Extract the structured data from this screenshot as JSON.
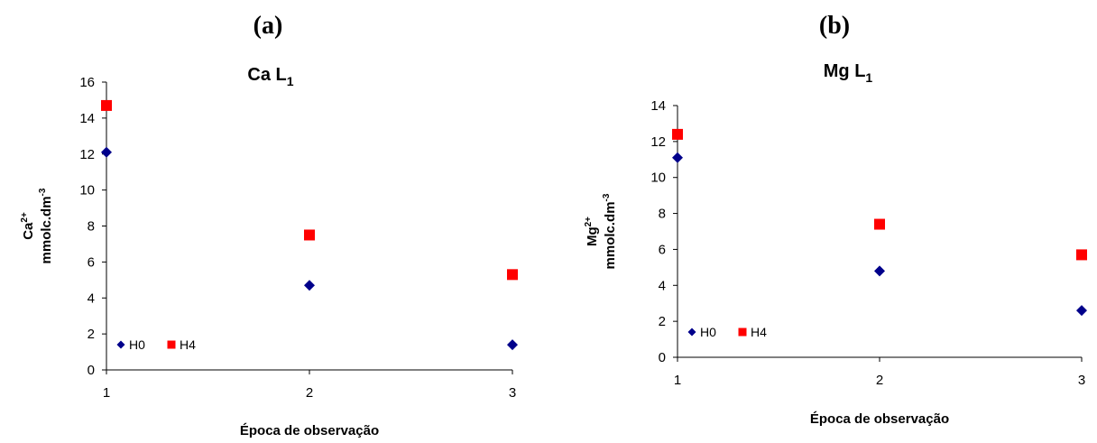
{
  "chart_data": [
    {
      "type": "scatter",
      "panel_label": "(a)",
      "title": "Ca L",
      "title_subscript": "1",
      "xlabel": "Época de observação",
      "ylabel_line1": "Ca",
      "ylabel_line1_sup": "2+",
      "ylabel_line2": "mmolc.dm",
      "ylabel_line2_sup": "-3",
      "xlim": [
        1,
        3
      ],
      "ylim": [
        0,
        16
      ],
      "xticks": [
        1,
        2,
        3
      ],
      "yticks": [
        0,
        2,
        4,
        6,
        8,
        10,
        12,
        14,
        16
      ],
      "grid": false,
      "legend_position": "bottom-left",
      "series": [
        {
          "name": "H0",
          "marker": "diamond",
          "color": "#00008B",
          "x": [
            1,
            2,
            3
          ],
          "y": [
            12.1,
            4.7,
            1.4
          ]
        },
        {
          "name": "H4",
          "marker": "square",
          "color": "#FF0000",
          "x": [
            1,
            2,
            3
          ],
          "y": [
            14.7,
            7.5,
            5.3
          ]
        }
      ]
    },
    {
      "type": "scatter",
      "panel_label": "(b)",
      "title": "Mg L",
      "title_subscript": "1",
      "xlabel": "Época de observação",
      "ylabel_line1": "Mg",
      "ylabel_line1_sup": "2+",
      "ylabel_line2": "mmolc.dm",
      "ylabel_line2_sup": "-3",
      "xlim": [
        1,
        3
      ],
      "ylim": [
        0,
        14
      ],
      "xticks": [
        1,
        2,
        3
      ],
      "yticks": [
        0,
        2,
        4,
        6,
        8,
        10,
        12,
        14
      ],
      "grid": false,
      "legend_position": "bottom-left",
      "series": [
        {
          "name": "H0",
          "marker": "diamond",
          "color": "#00008B",
          "x": [
            1,
            2,
            3
          ],
          "y": [
            11.1,
            4.8,
            2.6
          ]
        },
        {
          "name": "H4",
          "marker": "square",
          "color": "#FF0000",
          "x": [
            1,
            2,
            3
          ],
          "y": [
            12.4,
            7.4,
            5.7
          ]
        }
      ]
    }
  ]
}
